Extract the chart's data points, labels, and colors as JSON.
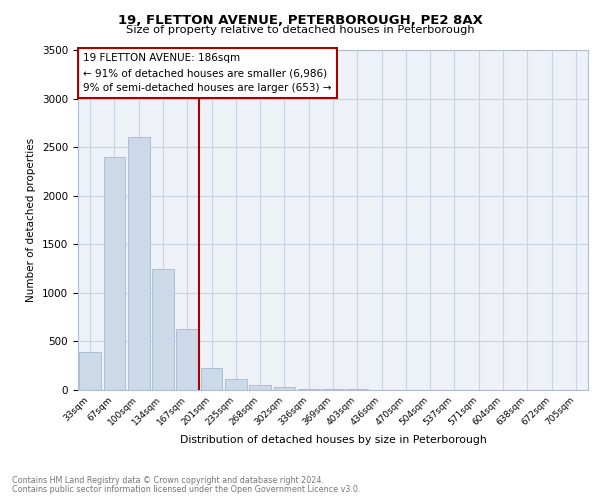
{
  "title1": "19, FLETTON AVENUE, PETERBOROUGH, PE2 8AX",
  "title2": "Size of property relative to detached houses in Peterborough",
  "xlabel": "Distribution of detached houses by size in Peterborough",
  "ylabel": "Number of detached properties",
  "annotation_line1": "19 FLETTON AVENUE: 186sqm",
  "annotation_line2": "← 91% of detached houses are smaller (6,986)",
  "annotation_line3": "9% of semi-detached houses are larger (653) →",
  "categories": [
    "33sqm",
    "67sqm",
    "100sqm",
    "134sqm",
    "167sqm",
    "201sqm",
    "235sqm",
    "268sqm",
    "302sqm",
    "336sqm",
    "369sqm",
    "403sqm",
    "436sqm",
    "470sqm",
    "504sqm",
    "537sqm",
    "571sqm",
    "604sqm",
    "638sqm",
    "672sqm",
    "705sqm"
  ],
  "values": [
    390,
    2400,
    2600,
    1250,
    630,
    230,
    110,
    55,
    30,
    15,
    10,
    7,
    0,
    0,
    0,
    0,
    0,
    0,
    0,
    0,
    0
  ],
  "bar_color": "#ccd9e8",
  "bar_edge_color": "#9ab0c8",
  "grid_color": "#c8d4e4",
  "line_color": "#aa0000",
  "box_edge_color": "#aa0000",
  "ylim": [
    0,
    3500
  ],
  "yticks": [
    0,
    500,
    1000,
    1500,
    2000,
    2500,
    3000,
    3500
  ],
  "footer1": "Contains HM Land Registry data © Crown copyright and database right 2024.",
  "footer2": "Contains public sector information licensed under the Open Government Licence v3.0.",
  "bg_color": "#eef2f8"
}
